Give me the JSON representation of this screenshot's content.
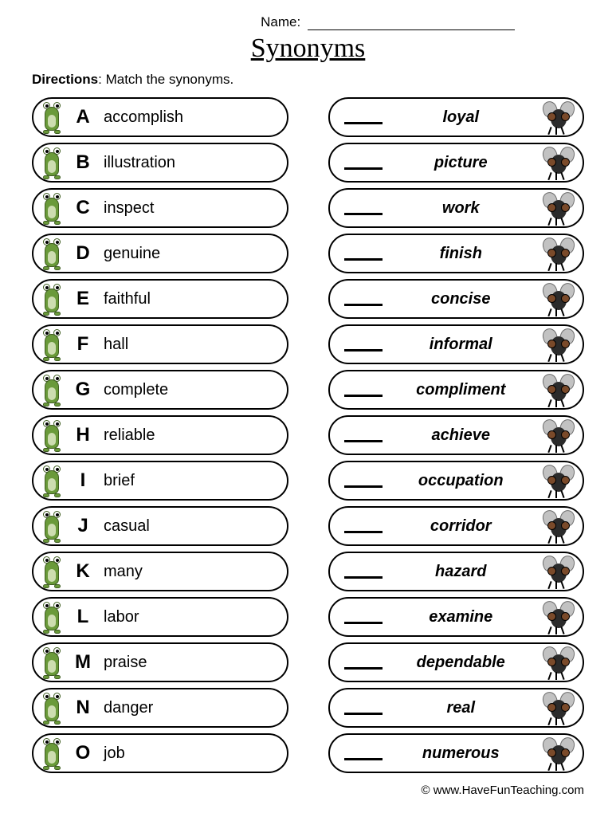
{
  "header": {
    "name_label": "Name:",
    "title": "Synonyms"
  },
  "directions": {
    "label": "Directions",
    "text": ": Match the synonyms."
  },
  "left_items": [
    {
      "letter": "A",
      "word": "accomplish"
    },
    {
      "letter": "B",
      "word": "illustration"
    },
    {
      "letter": "C",
      "word": "inspect"
    },
    {
      "letter": "D",
      "word": "genuine"
    },
    {
      "letter": "E",
      "word": "faithful"
    },
    {
      "letter": "F",
      "word": "hall"
    },
    {
      "letter": "G",
      "word": "complete"
    },
    {
      "letter": "H",
      "word": "reliable"
    },
    {
      "letter": "I",
      "word": "brief"
    },
    {
      "letter": "J",
      "word": "casual"
    },
    {
      "letter": "K",
      "word": "many"
    },
    {
      "letter": "L",
      "word": "labor"
    },
    {
      "letter": "M",
      "word": "praise"
    },
    {
      "letter": "N",
      "word": "danger"
    },
    {
      "letter": "O",
      "word": "job"
    }
  ],
  "right_items": [
    {
      "synonym": "loyal"
    },
    {
      "synonym": "picture"
    },
    {
      "synonym": "work"
    },
    {
      "synonym": "finish"
    },
    {
      "synonym": "concise"
    },
    {
      "synonym": "informal"
    },
    {
      "synonym": "compliment"
    },
    {
      "synonym": "achieve"
    },
    {
      "synonym": "occupation"
    },
    {
      "synonym": "corridor"
    },
    {
      "synonym": "hazard"
    },
    {
      "synonym": "examine"
    },
    {
      "synonym": "dependable"
    },
    {
      "synonym": "real"
    },
    {
      "synonym": "numerous"
    }
  ],
  "footer": {
    "copyright": "© www.HaveFunTeaching.com"
  },
  "style": {
    "page_bg": "#ffffff",
    "text_color": "#000000",
    "border_color": "#000000",
    "frog_body": "#6a9a3a",
    "frog_belly": "#cdddb0",
    "frog_outline": "#3d5c1f",
    "fly_body": "#2b2b2b",
    "fly_wing": "#b8b8b8",
    "fly_eye": "#7a4a2a",
    "pill_border_width": 2.5,
    "pill_radius": 26,
    "pill_height": 50,
    "title_fontsize": 34,
    "word_fontsize": 20,
    "letter_fontsize": 24
  }
}
